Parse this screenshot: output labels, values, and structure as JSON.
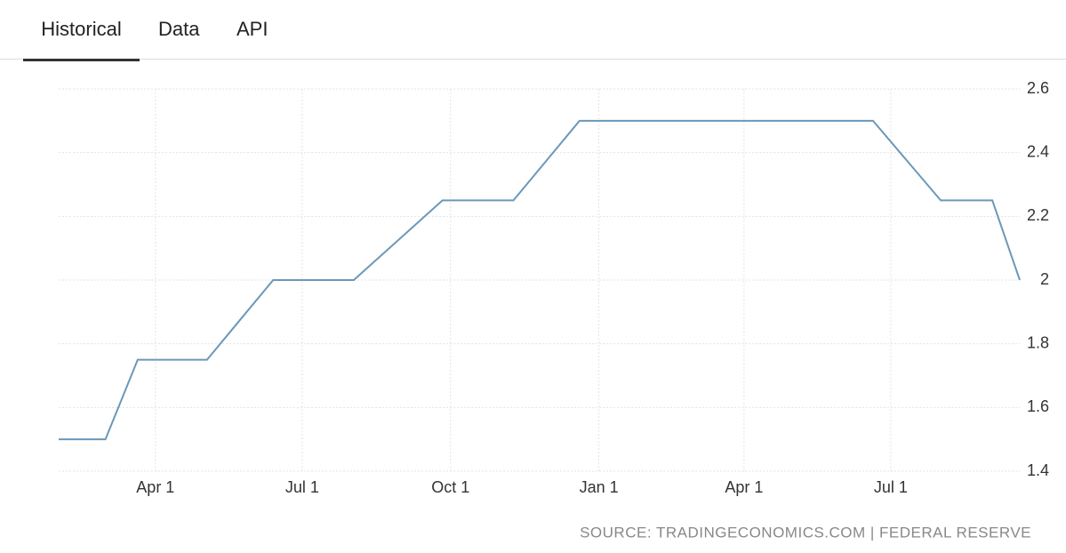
{
  "tabs": [
    "Historical",
    "Data",
    "API"
  ],
  "source": "SOURCE: TRADINGECONOMICS.COM | FEDERAL RESERVE",
  "chart_data": {
    "type": "line",
    "x": [
      0,
      29,
      49,
      92,
      133,
      183,
      238,
      282,
      323,
      505,
      547,
      579,
      596
    ],
    "series": [
      {
        "color": "#6b98b9",
        "values": [
          1.5,
          1.5,
          1.75,
          1.75,
          2.0,
          2.0,
          2.25,
          2.25,
          2.5,
          2.5,
          2.25,
          2.25,
          2.0
        ]
      }
    ],
    "xlim": [
      0,
      596
    ],
    "xticks": [
      {
        "value": 60,
        "label": "Apr 1"
      },
      {
        "value": 151,
        "label": "Jul 1"
      },
      {
        "value": 243,
        "label": "Oct 1"
      },
      {
        "value": 335,
        "label": "Jan 1"
      },
      {
        "value": 425,
        "label": "Apr 1"
      },
      {
        "value": 516,
        "label": "Jul 1"
      }
    ],
    "ylim": [
      1.4,
      2.6
    ],
    "yticks": [
      1.4,
      1.6,
      1.8,
      2,
      2.2,
      2.4,
      2.6
    ],
    "grid": true
  }
}
